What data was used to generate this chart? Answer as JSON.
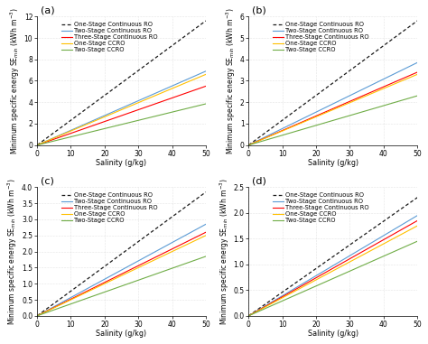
{
  "subplots": [
    {
      "label": "(a)",
      "ylim": [
        0,
        12
      ],
      "yticks": [
        0,
        2,
        4,
        6,
        8,
        10,
        12
      ],
      "lines": [
        {
          "name": "One-Stage Continuous RO",
          "color": "#1a1a1a",
          "slope": 0.232,
          "lw": 0.9,
          "dashes": [
            3,
            2
          ]
        },
        {
          "name": "Two-Stage Continuous RO",
          "color": "#5B9BD5",
          "slope": 0.138,
          "lw": 0.8,
          "dashes": []
        },
        {
          "name": "Three-Stage Continuous RO",
          "color": "#FF0000",
          "slope": 0.11,
          "lw": 0.8,
          "dashes": []
        },
        {
          "name": "One-Stage CCRO",
          "color": "#FFC000",
          "slope": 0.132,
          "lw": 0.8,
          "dashes": []
        },
        {
          "name": "Two-Stage CCRO",
          "color": "#70AD47",
          "slope": 0.077,
          "lw": 0.8,
          "dashes": []
        }
      ]
    },
    {
      "label": "(b)",
      "ylim": [
        0,
        6
      ],
      "yticks": [
        0,
        1,
        2,
        3,
        4,
        5,
        6
      ],
      "lines": [
        {
          "name": "One-Stage Continuous RO",
          "color": "#1a1a1a",
          "slope": 0.116,
          "lw": 0.9,
          "dashes": [
            3,
            2
          ]
        },
        {
          "name": "Two-Stage Continuous RO",
          "color": "#5B9BD5",
          "slope": 0.077,
          "lw": 0.8,
          "dashes": []
        },
        {
          "name": "Three-Stage Continuous RO",
          "color": "#FF0000",
          "slope": 0.068,
          "lw": 0.8,
          "dashes": []
        },
        {
          "name": "One-Stage CCRO",
          "color": "#FFC000",
          "slope": 0.066,
          "lw": 0.8,
          "dashes": []
        },
        {
          "name": "Two-Stage CCRO",
          "color": "#70AD47",
          "slope": 0.046,
          "lw": 0.8,
          "dashes": []
        }
      ]
    },
    {
      "label": "(c)",
      "ylim": [
        0,
        4
      ],
      "yticks": [
        0,
        0.5,
        1.0,
        1.5,
        2.0,
        2.5,
        3.0,
        3.5,
        4.0
      ],
      "lines": [
        {
          "name": "One-Stage Continuous RO",
          "color": "#1a1a1a",
          "slope": 0.077,
          "lw": 0.9,
          "dashes": [
            3,
            2
          ]
        },
        {
          "name": "Two-Stage Continuous RO",
          "color": "#5B9BD5",
          "slope": 0.057,
          "lw": 0.8,
          "dashes": []
        },
        {
          "name": "Three-Stage Continuous RO",
          "color": "#FF0000",
          "slope": 0.052,
          "lw": 0.8,
          "dashes": []
        },
        {
          "name": "One-Stage CCRO",
          "color": "#FFC000",
          "slope": 0.05,
          "lw": 0.8,
          "dashes": []
        },
        {
          "name": "Two-Stage CCRO",
          "color": "#70AD47",
          "slope": 0.037,
          "lw": 0.8,
          "dashes": []
        }
      ]
    },
    {
      "label": "(d)",
      "ylim": [
        0,
        2.5
      ],
      "yticks": [
        0,
        0.5,
        1.0,
        1.5,
        2.0,
        2.5
      ],
      "lines": [
        {
          "name": "One-Stage Continuous RO",
          "color": "#1a1a1a",
          "slope": 0.046,
          "lw": 0.9,
          "dashes": [
            3,
            2
          ]
        },
        {
          "name": "Two-Stage Continuous RO",
          "color": "#5B9BD5",
          "slope": 0.039,
          "lw": 0.8,
          "dashes": []
        },
        {
          "name": "Three-Stage Continuous RO",
          "color": "#FF0000",
          "slope": 0.037,
          "lw": 0.8,
          "dashes": []
        },
        {
          "name": "One-Stage CCRO",
          "color": "#FFC000",
          "slope": 0.035,
          "lw": 0.8,
          "dashes": []
        },
        {
          "name": "Two-Stage CCRO",
          "color": "#70AD47",
          "slope": 0.029,
          "lw": 0.8,
          "dashes": []
        }
      ]
    }
  ],
  "xlabel": "Salinity (g/kg)",
  "xlim": [
    0,
    50
  ],
  "xticks": [
    0,
    10,
    20,
    30,
    40,
    50
  ],
  "background_color": "#ffffff",
  "grid_color": "#cccccc",
  "legend_fontsize": 4.8,
  "axis_label_fontsize": 5.8,
  "tick_fontsize": 5.5,
  "subplot_label_fontsize": 8
}
